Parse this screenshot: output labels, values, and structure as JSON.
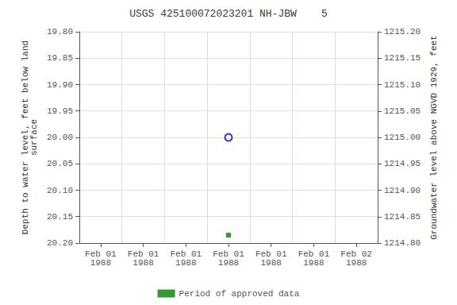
{
  "chart_data": {
    "type": "scatter",
    "title": "USGS 425100072023201 NH-JBW    5",
    "ylabel": "Depth to water level, feet below land\nsurface",
    "y2label": "Groundwater level above NGVD 1929, feet",
    "categories": [
      "Feb 01\n1988",
      "Feb 01\n1988",
      "Feb 01\n1988",
      "Feb 01\n1988",
      "Feb 01\n1988",
      "Feb 01\n1988",
      "Feb 02\n1988"
    ],
    "series": [
      {
        "color": "#0000cc",
        "marker": "open_circle",
        "values": [
          null,
          null,
          null,
          20.0,
          null,
          null,
          null
        ]
      },
      {
        "name": "Period of approved data",
        "color": "#008000",
        "marker": "square",
        "values": [
          null,
          null,
          null,
          20.185,
          null,
          null,
          null
        ]
      }
    ],
    "ylim": [
      20.2,
      19.8
    ],
    "yticks": [
      {
        "value": 19.8,
        "label": "19.80"
      },
      19.85,
      {
        "value": 19.9,
        "label": "19.90"
      },
      19.95,
      {
        "value": 20.0,
        "label": "20.00"
      },
      20.05,
      {
        "value": 20.1,
        "label": "20.10"
      },
      20.15,
      {
        "value": 20.2,
        "label": "20.20"
      }
    ],
    "y2lim": [
      1214.8,
      1215.2
    ],
    "y2ticks": [
      {
        "value": 1214.8,
        "label": "1214.80"
      },
      1214.85,
      {
        "value": 1214.9,
        "label": "1214.90"
      },
      1214.95,
      {
        "value": 1215.0,
        "label": "1215.00"
      },
      1215.05,
      {
        "value": 1215.1,
        "label": "1215.10"
      },
      1215.15,
      {
        "value": 1215.2,
        "label": "1215.20"
      }
    ],
    "grid": true,
    "legend": "bottom"
  }
}
